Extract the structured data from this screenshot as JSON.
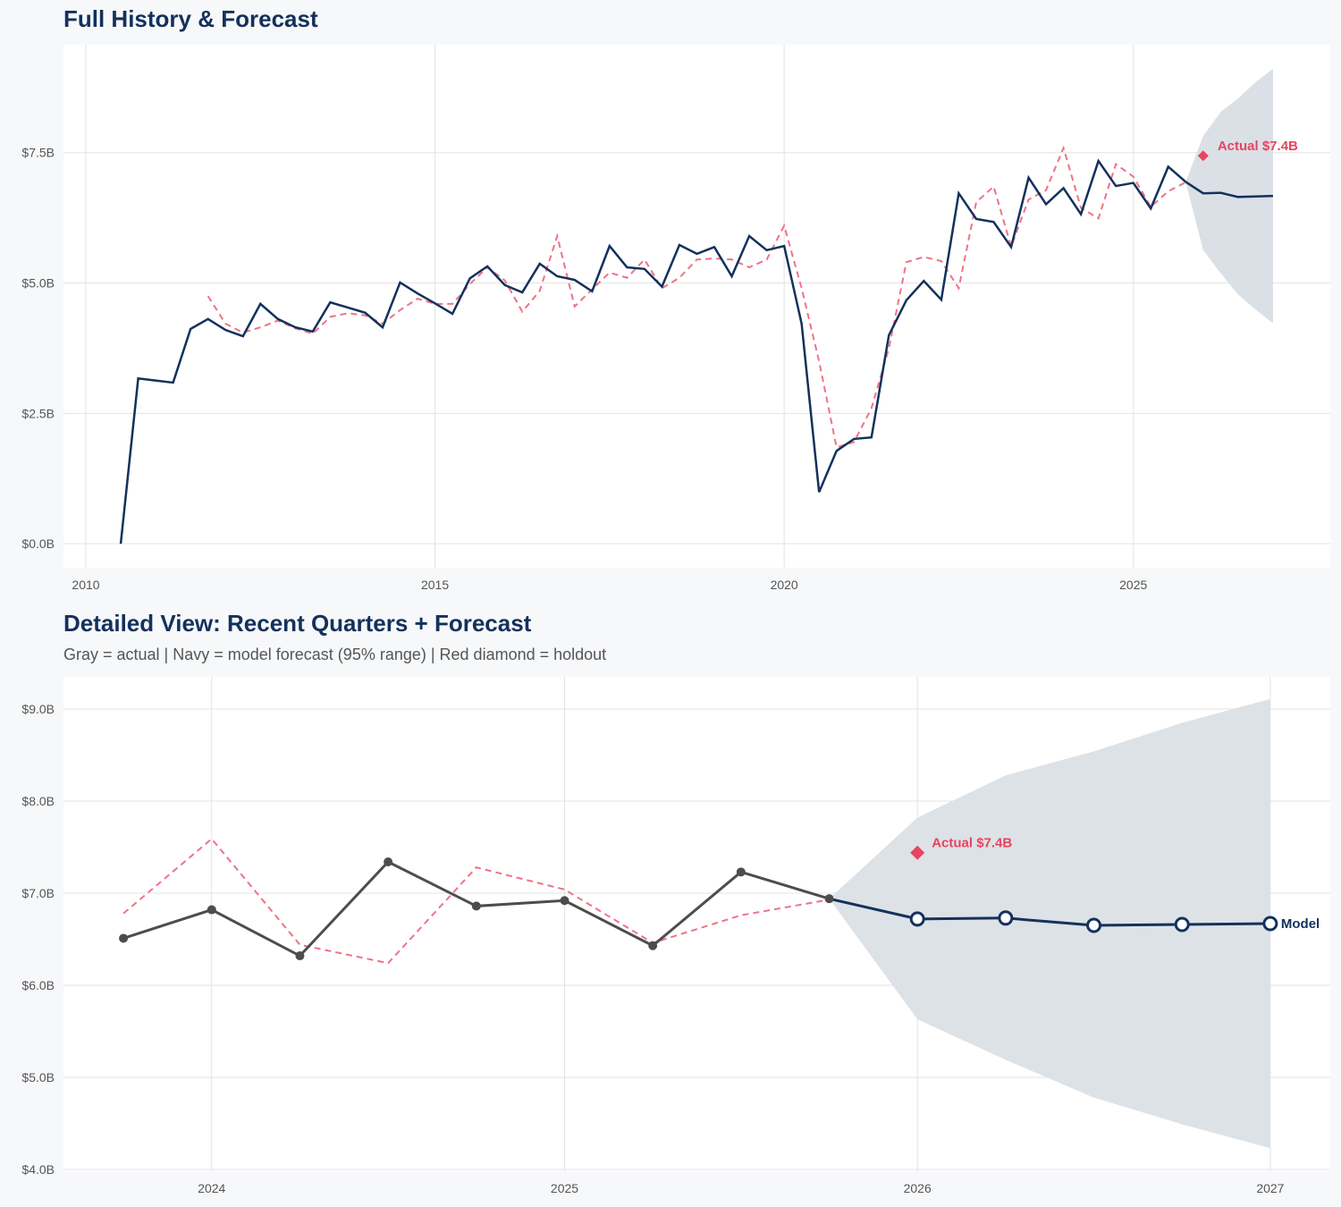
{
  "chart_data": [
    {
      "type": "line",
      "title": "Full History & Forecast",
      "xlim": [
        2009.68,
        2027.82
      ],
      "ylim": [
        -0.46,
        9.57
      ],
      "xticks": [
        2010,
        2015,
        2020,
        2025
      ],
      "xtick_labels": [
        "2010",
        "2015",
        "2020",
        "2025"
      ],
      "yticks": [
        0,
        2.5,
        5,
        7.5
      ],
      "ytick_labels": [
        "$0.0B",
        "$2.5B",
        "$5.0B",
        "$7.5B"
      ],
      "grid": true,
      "actual": {
        "x_start": 2010.5,
        "step": 0.25,
        "values": [
          0.0,
          3.17,
          3.13,
          3.09,
          4.12,
          4.31,
          4.1,
          3.98,
          4.6,
          4.31,
          4.15,
          4.07,
          4.63,
          4.53,
          4.43,
          4.15,
          5.01,
          4.8,
          4.61,
          4.41,
          5.09,
          5.32,
          4.96,
          4.82,
          5.37,
          5.13,
          5.06,
          4.84,
          5.71,
          5.3,
          5.27,
          4.93,
          5.73,
          5.56,
          5.69,
          5.13,
          5.9,
          5.63,
          5.71,
          4.22,
          0.99,
          1.78,
          2.01,
          2.04,
          4.0,
          4.67,
          5.04,
          4.68,
          6.72,
          6.23,
          6.17,
          5.69,
          7.02,
          6.51,
          6.82,
          6.32,
          7.34,
          6.86,
          6.92,
          6.43,
          7.23,
          6.94
        ]
      },
      "fitted": {
        "x_start": 2011.75,
        "step": 0.25,
        "values": [
          4.75,
          4.22,
          4.05,
          4.15,
          4.28,
          4.13,
          4.03,
          4.35,
          4.42,
          4.38,
          4.22,
          4.48,
          4.7,
          4.6,
          4.6,
          4.98,
          5.3,
          5.05,
          4.45,
          4.85,
          5.9,
          4.55,
          4.88,
          5.2,
          5.1,
          5.45,
          4.9,
          5.1,
          5.45,
          5.47,
          5.45,
          5.3,
          5.45,
          6.1,
          4.9,
          3.5,
          1.85,
          1.95,
          2.6,
          3.75,
          5.4,
          5.5,
          5.42,
          4.9,
          6.55,
          6.85,
          5.7,
          6.6,
          6.78,
          7.59,
          6.44,
          6.24,
          7.28,
          7.04,
          6.46,
          6.76,
          6.93
        ]
      },
      "forecast": {
        "x": [
          2025.75,
          2026.0,
          2026.25,
          2026.5,
          2026.75,
          2027.0
        ],
        "mean": [
          6.94,
          6.72,
          6.73,
          6.65,
          6.66,
          6.67
        ],
        "upper": [
          6.94,
          7.82,
          8.28,
          8.54,
          8.85,
          9.11
        ],
        "lower": [
          6.94,
          5.63,
          5.19,
          4.78,
          4.49,
          4.23
        ]
      },
      "holdout": {
        "x": 2026.0,
        "value": 7.44,
        "label": "Actual $7.4B"
      }
    },
    {
      "type": "line",
      "title": "Detailed View: Recent Quarters + Forecast",
      "subtitle": "Gray = actual  |  Navy = model forecast (95% range)  |  Red diamond = holdout",
      "xlim": [
        2023.58,
        2027.17
      ],
      "ylim": [
        3.98,
        9.35
      ],
      "xticks": [
        2024,
        2025,
        2026,
        2027
      ],
      "xtick_labels": [
        "2024",
        "2025",
        "2026",
        "2027"
      ],
      "yticks": [
        4,
        5,
        6,
        7,
        8,
        9
      ],
      "ytick_labels": [
        "$4.0B",
        "$5.0B",
        "$6.0B",
        "$7.0B",
        "$8.0B",
        "$9.0B"
      ],
      "grid": true,
      "actual": {
        "x": [
          2023.75,
          2024.0,
          2024.25,
          2024.5,
          2024.75,
          2025.0,
          2025.25,
          2025.5,
          2025.75
        ],
        "values": [
          6.51,
          6.82,
          6.32,
          7.34,
          6.86,
          6.92,
          6.43,
          7.23,
          6.94
        ]
      },
      "fitted": {
        "x": [
          2023.75,
          2024.0,
          2024.25,
          2024.5,
          2024.75,
          2025.0,
          2025.25,
          2025.5,
          2025.75
        ],
        "values": [
          6.78,
          7.59,
          6.44,
          6.24,
          7.28,
          7.04,
          6.46,
          6.76,
          6.93
        ]
      },
      "forecast": {
        "x": [
          2025.75,
          2026.0,
          2026.25,
          2026.5,
          2026.75,
          2027.0
        ],
        "mean": [
          6.94,
          6.72,
          6.73,
          6.65,
          6.66,
          6.67
        ],
        "upper": [
          6.94,
          7.82,
          8.28,
          8.54,
          8.85,
          9.11
        ],
        "lower": [
          6.94,
          5.63,
          5.19,
          4.78,
          4.49,
          4.23
        ],
        "label": "Model"
      },
      "holdout": {
        "x": 2026.0,
        "value": 7.44,
        "label": "Actual $7.4B"
      }
    }
  ],
  "colors": {
    "navy": "#13315c",
    "gray": "#4d4d4d",
    "red": "#e8435f",
    "fitted": "#ee7387",
    "band": "#dbe0e6",
    "grid": "#e3e3e3"
  }
}
